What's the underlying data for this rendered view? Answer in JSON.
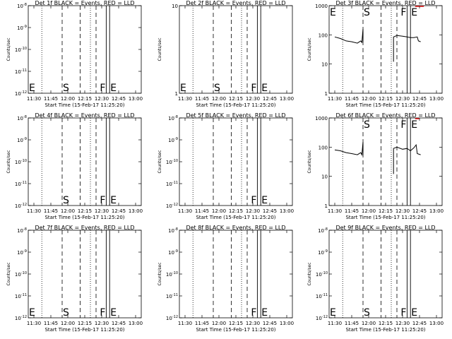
{
  "chart_data": [
    {
      "title": "Det 1f BLACK = Events, RED = LLD",
      "type": "line",
      "y_scale": "log",
      "ylabel": "Counts/sec",
      "xlabel": "Start Time (15-Feb-17 11:25:20)",
      "xlim": [
        "11:25",
        "13:05"
      ],
      "ylim": [
        1e-12,
        1e-08
      ],
      "y_tick_labels": [
        "10^-12",
        "10^-11",
        "10^-10",
        "10^-9",
        "10^-8"
      ],
      "x_tick_labels": [
        "11:30",
        "11:45",
        "12:00",
        "12:15",
        "12:30",
        "12:45",
        "13:00"
      ],
      "markers": [
        {
          "label": "E",
          "at": "11:25"
        },
        {
          "label": "S",
          "at": "11:55"
        },
        {
          "label": "F",
          "at": "12:34"
        },
        {
          "label": "E",
          "at": "12:37"
        }
      ],
      "series": []
    },
    {
      "title": "Det 2f BLACK = Events, RED = LLD",
      "type": "line",
      "y_scale": "log",
      "ylabel": "Counts/sec",
      "xlabel": "Start Time (15-Feb-17 11:25:20)",
      "xlim": [
        "11:25",
        "13:05"
      ],
      "ylim": [
        1,
        10
      ],
      "y_tick_labels": [
        "1",
        "10"
      ],
      "x_tick_labels": [
        "11:30",
        "11:45",
        "12:00",
        "12:15",
        "12:30",
        "12:45",
        "13:00"
      ],
      "markers": [
        {
          "label": "E",
          "at": "11:25"
        },
        {
          "label": "S",
          "at": "11:55"
        },
        {
          "label": "F",
          "at": "12:34"
        },
        {
          "label": "E",
          "at": "12:37"
        }
      ],
      "series": []
    },
    {
      "title": "Det 3f BLACK = Events, RED = LLD",
      "type": "line",
      "y_scale": "log",
      "ylabel": "Counts/sec",
      "xlabel": "Start Time (15-Feb-17 11:25:20)",
      "xlim": [
        "11:25",
        "13:05"
      ],
      "ylim": [
        1,
        1000
      ],
      "y_tick_labels": [
        "1",
        "10",
        "100",
        "1000"
      ],
      "x_tick_labels": [
        "11:30",
        "11:45",
        "12:00",
        "12:15",
        "12:30",
        "12:45",
        "13:00"
      ],
      "markers": [
        {
          "label": "E",
          "at": "11:25"
        },
        {
          "label": "S",
          "at": "11:55"
        },
        {
          "label": "F",
          "at": "12:34"
        },
        {
          "label": "E",
          "at": "12:37"
        }
      ],
      "series": [
        {
          "color": "#000000",
          "points": [
            {
              "x": "11:30",
              "y": 85
            },
            {
              "x": "11:35",
              "y": 75
            },
            {
              "x": "11:40",
              "y": 62
            },
            {
              "x": "11:45",
              "y": 58
            },
            {
              "x": "11:50",
              "y": 52
            },
            {
              "x": "11:53",
              "y": 62
            },
            {
              "x": "11:54",
              "y": 55
            },
            {
              "x": "11:55",
              "y": 160
            },
            {
              "x": "11:55",
              "y": 55
            }
          ]
        },
        {
          "color": "#000000",
          "points": [
            {
              "x": "12:22",
              "y": 12
            },
            {
              "x": "12:22",
              "y": 85
            },
            {
              "x": "12:25",
              "y": 95
            },
            {
              "x": "12:30",
              "y": 90
            },
            {
              "x": "12:34",
              "y": 85
            },
            {
              "x": "12:37",
              "y": 80
            },
            {
              "x": "12:40",
              "y": 80
            },
            {
              "x": "12:43",
              "y": 85
            },
            {
              "x": "12:44",
              "y": 62
            },
            {
              "x": "12:46",
              "y": 58
            }
          ]
        }
      ],
      "red_marks": [
        {
          "x": "12:43",
          "y": 1000
        },
        {
          "x": "12:47",
          "y": 1000
        }
      ]
    },
    {
      "title": "Det 4f BLACK = Events, RED = LLD",
      "type": "line",
      "y_scale": "log",
      "ylabel": "Counts/sec",
      "xlabel": "Start Time (15-Feb-17 11:25:20)",
      "xlim": [
        "11:25",
        "13:05"
      ],
      "ylim": [
        1e-12,
        1e-08
      ],
      "y_tick_labels": [
        "10^-12",
        "10^-11",
        "10^-10",
        "10^-9",
        "10^-8"
      ],
      "x_tick_labels": [
        "11:30",
        "11:45",
        "12:00",
        "12:15",
        "12:30",
        "12:45",
        "13:00"
      ],
      "markers": [
        {
          "label": "S",
          "at": "11:55"
        },
        {
          "label": "F",
          "at": "12:34"
        },
        {
          "label": "E",
          "at": "12:37"
        }
      ],
      "series": []
    },
    {
      "title": "Det 5f BLACK = Events, RED = LLD",
      "type": "line",
      "y_scale": "log",
      "ylabel": "Counts/sec",
      "xlabel": "Start Time (15-Feb-17 11:25:20)",
      "xlim": [
        "11:25",
        "13:05"
      ],
      "ylim": [
        1e-12,
        1e-08
      ],
      "y_tick_labels": [
        "10^-12",
        "10^-11",
        "10^-10",
        "10^-9",
        "10^-8"
      ],
      "x_tick_labels": [
        "11:30",
        "11:45",
        "12:00",
        "12:15",
        "12:30",
        "12:45",
        "13:00"
      ],
      "markers": [
        {
          "label": "F",
          "at": "12:34"
        },
        {
          "label": "E",
          "at": "12:37"
        }
      ],
      "series": []
    },
    {
      "title": "Det 6f BLACK = Events, RED = LLD",
      "type": "line",
      "y_scale": "log",
      "ylabel": "Counts/sec",
      "xlabel": "Start Time (15-Feb-17 11:25:20)",
      "xlim": [
        "11:25",
        "13:05"
      ],
      "ylim": [
        1,
        1000
      ],
      "y_tick_labels": [
        "1",
        "10",
        "100",
        "1000"
      ],
      "x_tick_labels": [
        "11:30",
        "11:45",
        "12:00",
        "12:15",
        "12:30",
        "12:45",
        "13:00"
      ],
      "markers": [
        {
          "label": "S",
          "at": "11:55"
        },
        {
          "label": "F",
          "at": "12:34"
        },
        {
          "label": "E",
          "at": "12:37"
        }
      ],
      "series": [
        {
          "color": "#000000",
          "points": [
            {
              "x": "11:30",
              "y": 80
            },
            {
              "x": "11:35",
              "y": 75
            },
            {
              "x": "11:40",
              "y": 65
            },
            {
              "x": "11:45",
              "y": 60
            },
            {
              "x": "11:50",
              "y": 55
            },
            {
              "x": "11:53",
              "y": 65
            },
            {
              "x": "11:54",
              "y": 55
            },
            {
              "x": "11:55",
              "y": 150
            },
            {
              "x": "11:55",
              "y": 52
            }
          ]
        },
        {
          "color": "#000000",
          "points": [
            {
              "x": "12:22",
              "y": 12
            },
            {
              "x": "12:22",
              "y": 90
            },
            {
              "x": "12:25",
              "y": 100
            },
            {
              "x": "12:30",
              "y": 85
            },
            {
              "x": "12:34",
              "y": 90
            },
            {
              "x": "12:37",
              "y": 75
            },
            {
              "x": "12:40",
              "y": 95
            },
            {
              "x": "12:42",
              "y": 120
            },
            {
              "x": "12:43",
              "y": 60
            },
            {
              "x": "12:46",
              "y": 55
            }
          ]
        }
      ],
      "red_marks": [
        {
          "x": "12:43",
          "y": 1000
        }
      ]
    },
    {
      "title": "Det 7f BLACK = Events, RED = LLD",
      "type": "line",
      "y_scale": "log",
      "ylabel": "Counts/sec",
      "xlabel": "Start Time (15-Feb-17 11:25:20)",
      "xlim": [
        "11:25",
        "13:05"
      ],
      "ylim": [
        1e-12,
        1e-08
      ],
      "y_tick_labels": [
        "10^-12",
        "10^-11",
        "10^-10",
        "10^-9",
        "10^-8"
      ],
      "x_tick_labels": [
        "11:30",
        "11:45",
        "12:00",
        "12:15",
        "12:30",
        "12:45",
        "13:00"
      ],
      "markers": [
        {
          "label": "E",
          "at": "11:25"
        },
        {
          "label": "S",
          "at": "11:55"
        },
        {
          "label": "F",
          "at": "12:34"
        },
        {
          "label": "E",
          "at": "12:37"
        }
      ],
      "series": []
    },
    {
      "title": "Det 8f BLACK = Events, RED = LLD",
      "type": "line",
      "y_scale": "log",
      "ylabel": "Counts/sec",
      "xlabel": "Start Time (15-Feb-17 11:25:20)",
      "xlim": [
        "11:25",
        "13:05"
      ],
      "ylim": [
        1e-12,
        1e-08
      ],
      "y_tick_labels": [
        "10^-12",
        "10^-11",
        "10^-10",
        "10^-9",
        "10^-8"
      ],
      "x_tick_labels": [
        "11:30",
        "11:45",
        "12:00",
        "12:15",
        "12:30",
        "12:45",
        "13:00"
      ],
      "markers": [
        {
          "label": "F",
          "at": "12:34"
        },
        {
          "label": "E",
          "at": "12:37"
        }
      ],
      "series": []
    },
    {
      "title": "Det 9f BLACK = Events, RED = LLD",
      "type": "line",
      "y_scale": "log",
      "ylabel": "Counts/sec",
      "xlabel": "Start Time (15-Feb-17 11:25:20)",
      "xlim": [
        "11:25",
        "13:05"
      ],
      "ylim": [
        1e-12,
        1e-08
      ],
      "y_tick_labels": [
        "10^-12",
        "10^-11",
        "10^-10",
        "10^-9",
        "10^-8"
      ],
      "x_tick_labels": [
        "11:30",
        "11:45",
        "12:00",
        "12:15",
        "12:30",
        "12:45",
        "13:00"
      ],
      "markers": [
        {
          "label": "E",
          "at": "11:25"
        },
        {
          "label": "S",
          "at": "11:55"
        },
        {
          "label": "F",
          "at": "12:34"
        },
        {
          "label": "E",
          "at": "12:37"
        }
      ],
      "series": []
    }
  ],
  "time_markers": {
    "dotted": [
      "11:37",
      "12:20"
    ],
    "dashed": [
      "11:55",
      "12:11",
      "12:25"
    ],
    "solid": [
      "12:34",
      "12:37"
    ]
  }
}
